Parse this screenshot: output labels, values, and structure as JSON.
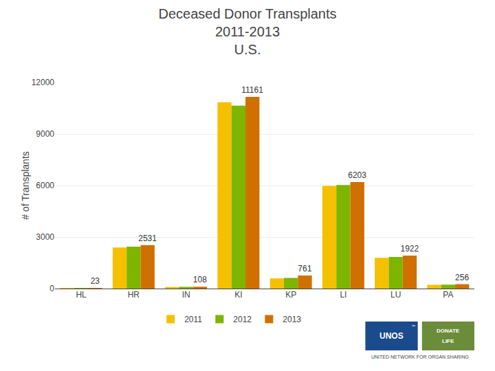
{
  "chart_data": {
    "type": "bar",
    "title": "Deceased Donor Transplants\n2011-2013\nU.S.",
    "ylabel": "# of Transplants",
    "categories": [
      "HL",
      "HR",
      "IN",
      "KI",
      "KP",
      "LI",
      "LU",
      "PA"
    ],
    "series": [
      {
        "name": "2011",
        "color": "#F5C000",
        "values": [
          22,
          2390,
          95,
          10850,
          590,
          5980,
          1790,
          218
        ]
      },
      {
        "name": "2012",
        "color": "#7DB500",
        "values": [
          22,
          2440,
          100,
          10650,
          620,
          6030,
          1840,
          228
        ]
      },
      {
        "name": "2013",
        "color": "#D07000",
        "values": [
          23,
          2531,
          108,
          11161,
          761,
          6203,
          1922,
          256
        ],
        "data_labels": true
      }
    ],
    "ylim": [
      0,
      12000
    ],
    "yticks": [
      0,
      3000,
      6000,
      9000,
      12000
    ],
    "grid": true,
    "legend": "bottom",
    "annotations": [
      "UNOS",
      "™",
      "DONATE",
      "LIFE",
      "UNITED NETWORK FOR ORGAN SHARING"
    ]
  }
}
